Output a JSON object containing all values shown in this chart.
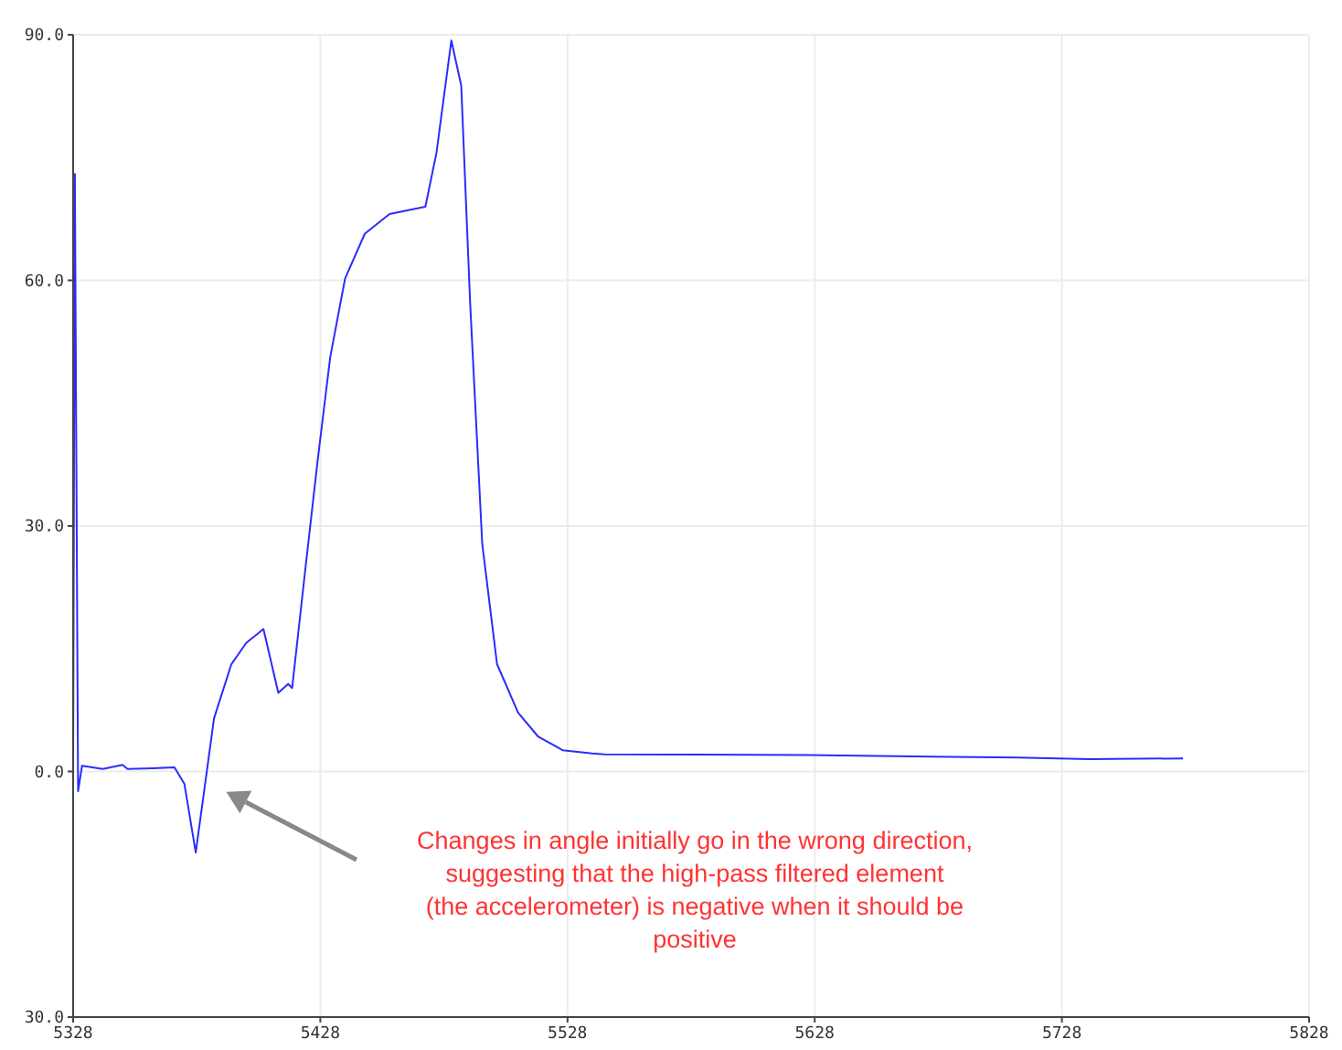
{
  "chart_data": {
    "type": "line",
    "x": [
      5328,
      5328.7,
      5330,
      5331.6,
      5340,
      5348,
      5350,
      5360,
      5369,
      5373,
      5377.6,
      5385,
      5392,
      5398,
      5405,
      5411,
      5415,
      5416.6,
      5422,
      5427,
      5432,
      5438,
      5446,
      5456,
      5470.5,
      5475,
      5481,
      5485,
      5488.6,
      5493.5,
      5499.5,
      5508,
      5516,
      5526,
      5538,
      5543,
      5625,
      5710,
      5739,
      5777
    ],
    "series": [
      {
        "color": "#2b2bff",
        "values": [
          0,
          73,
          -2.4,
          0.7,
          0.3,
          0.8,
          0.3,
          0.4,
          0.5,
          -1.5,
          -9.9,
          6.5,
          13.1,
          15.7,
          17.4,
          9.6,
          10.7,
          10.2,
          24.9,
          38.2,
          50.6,
          60.2,
          65.7,
          68.1,
          69.0,
          75.6,
          89.3,
          83.8,
          57.3,
          27.8,
          13.1,
          7.2,
          4.3,
          2.6,
          2.2,
          2.1,
          2.0,
          1.7,
          1.5,
          1.6
        ]
      }
    ],
    "xlim": [
      5328,
      5828
    ],
    "xticks": [
      5328,
      5428,
      5528,
      5628,
      5728,
      5828
    ],
    "ylim": [
      -30,
      90
    ],
    "yticks": [
      {
        "value": -30,
        "label": "30.0"
      },
      {
        "value": 0,
        "label": "0.0"
      },
      {
        "value": 30,
        "label": "30.0"
      },
      {
        "value": 60,
        "label": "60.0"
      },
      {
        "value": 90,
        "label": "90.0"
      }
    ],
    "grid": true,
    "marker": "none",
    "line_style": "solid",
    "legend": false,
    "annotations": [
      "Changes in angle initially go in the wrong direction,\nsuggesting that the high-pass filtered element\n(the accelerometer) is negative when it should be\npositive"
    ]
  }
}
